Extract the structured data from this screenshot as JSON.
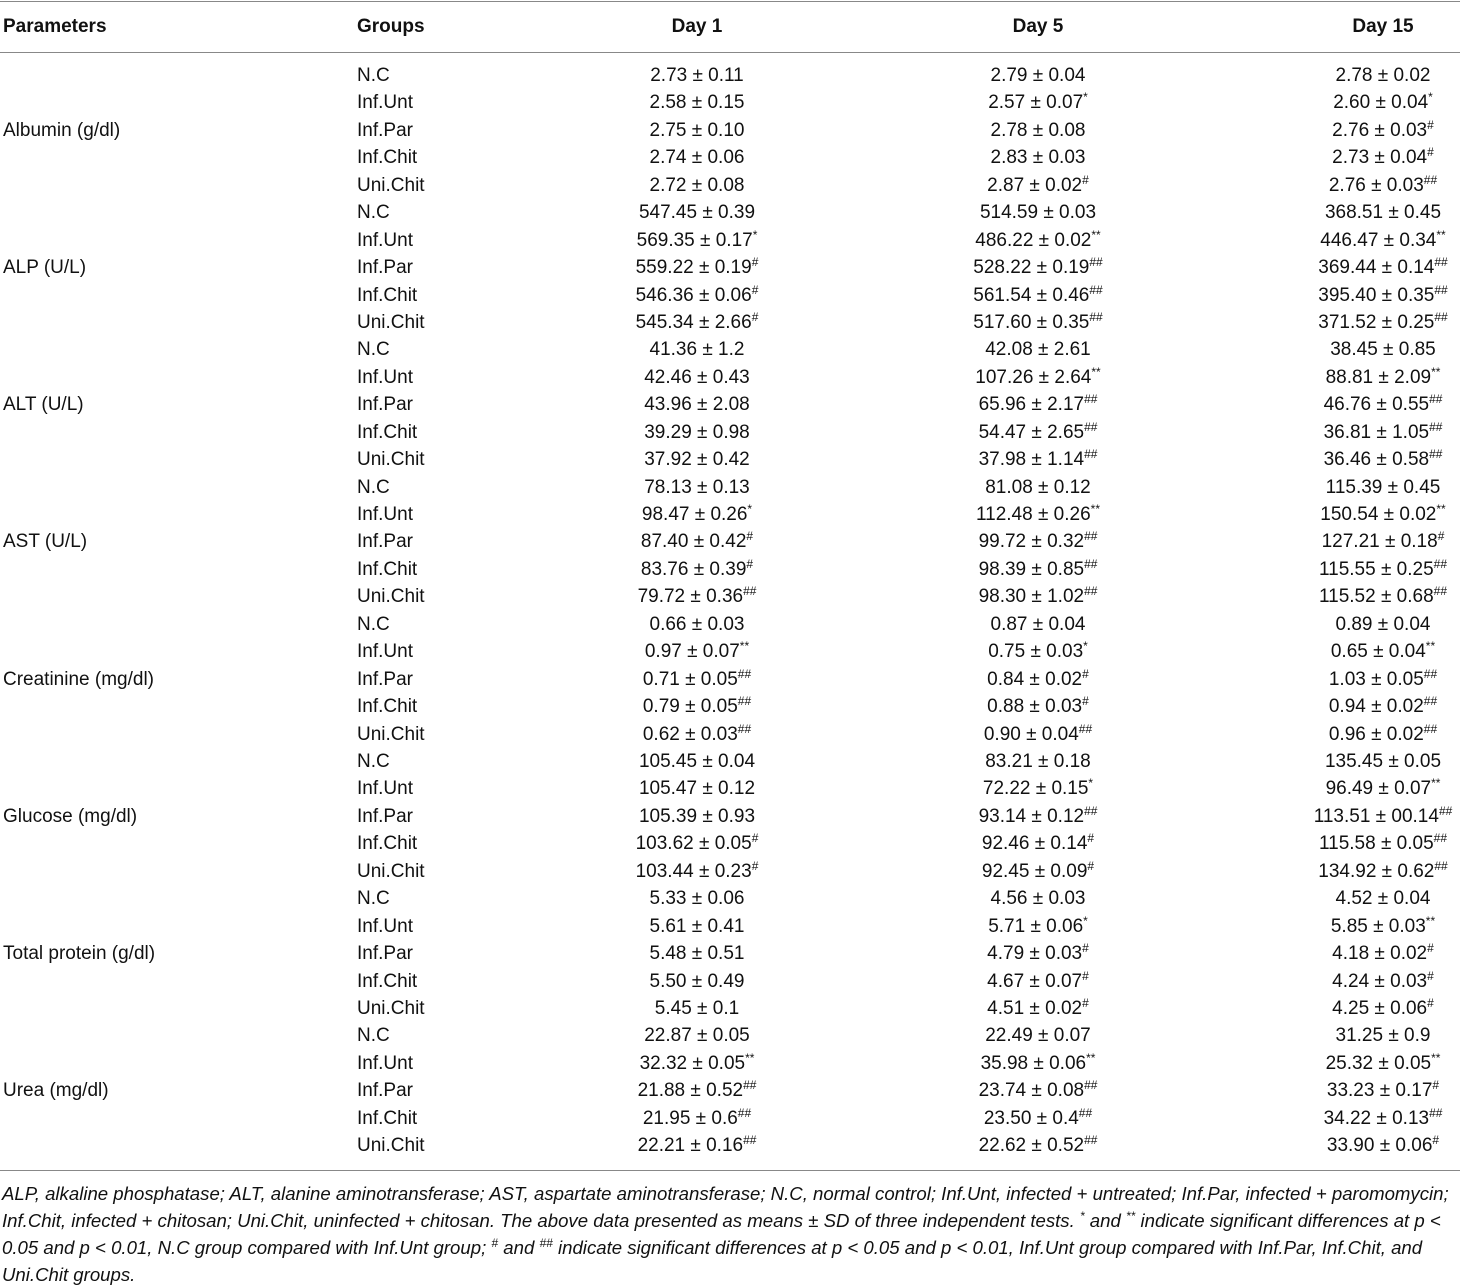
{
  "table": {
    "header": [
      "Parameters",
      "Groups",
      "Day 1",
      "Day 5",
      "Day 15"
    ],
    "sections": [
      {
        "parameter": "Albumin (g/dl)",
        "rows": [
          [
            "N.C",
            "2.73 ± 0.11",
            "2.79 ± 0.04",
            "2.78 ± 0.02"
          ],
          [
            "Inf.Unt",
            "2.58 ± 0.15",
            [
              "2.57 ± 0.07",
              "*"
            ],
            [
              "2.60 ± 0.04",
              "*"
            ]
          ],
          [
            "Inf.Par",
            "2.75 ± 0.10",
            "2.78 ± 0.08",
            [
              "2.76 ± 0.03",
              "#"
            ]
          ],
          [
            "Inf.Chit",
            "2.74 ± 0.06",
            "2.83 ± 0.03",
            [
              "2.73 ± 0.04",
              "#"
            ]
          ],
          [
            "Uni.Chit",
            "2.72 ± 0.08",
            [
              "2.87 ± 0.02",
              "#"
            ],
            [
              "2.76 ± 0.03",
              "##"
            ]
          ]
        ]
      },
      {
        "parameter": "ALP (U/L)",
        "rows": [
          [
            "N.C",
            "547.45 ± 0.39",
            "514.59 ± 0.03",
            "368.51 ± 0.45"
          ],
          [
            "Inf.Unt",
            [
              "569.35 ± 0.17",
              "*"
            ],
            [
              "486.22 ± 0.02",
              "**"
            ],
            [
              "446.47 ± 0.34",
              "**"
            ]
          ],
          [
            "Inf.Par",
            [
              "559.22 ± 0.19",
              "#"
            ],
            [
              "528.22 ± 0.19",
              "##"
            ],
            [
              "369.44 ± 0.14",
              "##"
            ]
          ],
          [
            "Inf.Chit",
            [
              "546.36 ± 0.06",
              "#"
            ],
            [
              "561.54 ± 0.46",
              "##"
            ],
            [
              "395.40 ± 0.35",
              "##"
            ]
          ],
          [
            "Uni.Chit",
            [
              "545.34 ± 2.66",
              "#"
            ],
            [
              "517.60 ± 0.35",
              "##"
            ],
            [
              "371.52 ± 0.25",
              "##"
            ]
          ]
        ]
      },
      {
        "parameter": "ALT (U/L)",
        "rows": [
          [
            "N.C",
            "41.36 ± 1.2",
            "42.08 ± 2.61",
            "38.45 ± 0.85"
          ],
          [
            "Inf.Unt",
            "42.46 ± 0.43",
            [
              "107.26 ± 2.64",
              "**"
            ],
            [
              "88.81 ± 2.09",
              "**"
            ]
          ],
          [
            "Inf.Par",
            "43.96 ± 2.08",
            [
              "65.96 ± 2.17",
              "##"
            ],
            [
              "46.76 ± 0.55",
              "##"
            ]
          ],
          [
            "Inf.Chit",
            "39.29 ± 0.98",
            [
              "54.47 ± 2.65",
              "##"
            ],
            [
              "36.81 ± 1.05",
              "##"
            ]
          ],
          [
            "Uni.Chit",
            "37.92 ± 0.42",
            [
              "37.98 ± 1.14",
              "##"
            ],
            [
              "36.46 ± 0.58",
              "##"
            ]
          ]
        ]
      },
      {
        "parameter": "AST (U/L)",
        "rows": [
          [
            "N.C",
            "78.13 ± 0.13",
            "81.08 ± 0.12",
            "115.39 ± 0.45"
          ],
          [
            "Inf.Unt",
            [
              "98.47 ± 0.26",
              "*"
            ],
            [
              "112.48 ± 0.26",
              "**"
            ],
            [
              "150.54 ± 0.02",
              "**"
            ]
          ],
          [
            "Inf.Par",
            [
              "87.40 ± 0.42",
              "#"
            ],
            [
              "99.72 ± 0.32",
              "##"
            ],
            [
              "127.21 ± 0.18",
              "#"
            ]
          ],
          [
            "Inf.Chit",
            [
              "83.76 ± 0.39",
              "#"
            ],
            [
              "98.39 ± 0.85",
              "##"
            ],
            [
              "115.55 ± 0.25",
              "##"
            ]
          ],
          [
            "Uni.Chit",
            [
              "79.72 ± 0.36",
              "##"
            ],
            [
              "98.30 ± 1.02",
              "##"
            ],
            [
              "115.52 ± 0.68",
              "##"
            ]
          ]
        ]
      },
      {
        "parameter": "Creatinine (mg/dl)",
        "rows": [
          [
            "N.C",
            "0.66 ± 0.03",
            "0.87 ± 0.04",
            "0.89 ± 0.04"
          ],
          [
            "Inf.Unt",
            [
              "0.97 ± 0.07",
              "**"
            ],
            [
              "0.75 ± 0.03",
              "*"
            ],
            [
              "0.65 ± 0.04",
              "**"
            ]
          ],
          [
            "Inf.Par",
            [
              "0.71 ± 0.05",
              "##"
            ],
            [
              "0.84 ± 0.02",
              "#"
            ],
            [
              "1.03 ± 0.05",
              "##"
            ]
          ],
          [
            "Inf.Chit",
            [
              "0.79 ± 0.05",
              "##"
            ],
            [
              "0.88 ± 0.03",
              "#"
            ],
            [
              "0.94 ± 0.02",
              "##"
            ]
          ],
          [
            "Uni.Chit",
            [
              "0.62 ± 0.03",
              "##"
            ],
            [
              "0.90 ± 0.04",
              "##"
            ],
            [
              "0.96 ± 0.02",
              "##"
            ]
          ]
        ]
      },
      {
        "parameter": "Glucose (mg/dl)",
        "rows": [
          [
            "N.C",
            "105.45 ± 0.04",
            "83.21 ± 0.18",
            "135.45 ± 0.05"
          ],
          [
            "Inf.Unt",
            "105.47 ± 0.12",
            [
              "72.22 ± 0.15",
              "*"
            ],
            [
              "96.49 ± 0.07",
              "**"
            ]
          ],
          [
            "Inf.Par",
            "105.39 ± 0.93",
            [
              "93.14 ± 0.12",
              "##"
            ],
            [
              "113.51 ± 00.14",
              "##"
            ]
          ],
          [
            "Inf.Chit",
            [
              "103.62 ± 0.05",
              "#"
            ],
            [
              "92.46 ± 0.14",
              "#"
            ],
            [
              "115.58 ± 0.05",
              "##"
            ]
          ],
          [
            "Uni.Chit",
            [
              "103.44 ± 0.23",
              "#"
            ],
            [
              "92.45 ± 0.09",
              "#"
            ],
            [
              "134.92 ± 0.62",
              "##"
            ]
          ]
        ]
      },
      {
        "parameter": "Total protein (g/dl)",
        "rows": [
          [
            "N.C",
            "5.33 ± 0.06",
            "4.56 ± 0.03",
            "4.52 ± 0.04"
          ],
          [
            "Inf.Unt",
            "5.61 ± 0.41",
            [
              "5.71 ± 0.06",
              "*"
            ],
            [
              "5.85 ± 0.03",
              "**"
            ]
          ],
          [
            "Inf.Par",
            "5.48 ± 0.51",
            [
              "4.79 ± 0.03",
              "#"
            ],
            [
              "4.18 ± 0.02",
              "#"
            ]
          ],
          [
            "Inf.Chit",
            "5.50 ± 0.49",
            [
              "4.67 ± 0.07",
              "#"
            ],
            [
              "4.24 ± 0.03",
              "#"
            ]
          ],
          [
            "Uni.Chit",
            "5.45 ± 0.1",
            [
              "4.51 ± 0.02",
              "#"
            ],
            [
              "4.25 ± 0.06",
              "#"
            ]
          ]
        ]
      },
      {
        "parameter": "Urea (mg/dl)",
        "rows": [
          [
            "N.C",
            "22.87 ± 0.05",
            "22.49 ± 0.07",
            "31.25 ± 0.9"
          ],
          [
            "Inf.Unt",
            [
              "32.32 ± 0.05",
              "**"
            ],
            [
              "35.98 ± 0.06",
              "**"
            ],
            [
              "25.32 ± 0.05",
              "**"
            ]
          ],
          [
            "Inf.Par",
            [
              "21.88 ± 0.52",
              "##"
            ],
            [
              "23.74 ± 0.08",
              "##"
            ],
            [
              "33.23 ± 0.17",
              "#"
            ]
          ],
          [
            "Inf.Chit",
            [
              "21.95 ± 0.6",
              "##"
            ],
            [
              "23.50 ± 0.4",
              "##"
            ],
            [
              "34.22 ± 0.13",
              "##"
            ]
          ],
          [
            "Uni.Chit",
            [
              "22.21 ± 0.16",
              "##"
            ],
            [
              "22.62 ± 0.52",
              "##"
            ],
            [
              "33.90 ± 0.06",
              "#"
            ]
          ]
        ]
      }
    ],
    "footnote": [
      "ALP, alkaline phosphatase; ALT, alanine aminotransferase; AST, aspartate aminotransferase; N.C, normal control; Inf.Unt, infected + untreated; Inf.Par, infected + paromomycin; Inf.Chit, infected + chitosan; Uni.Chit, uninfected + chitosan. The above data presented as means ± SD of three independent tests. ",
      [
        "*"
      ],
      " and ",
      [
        "**"
      ],
      " indicate significant differences at p < 0.05 and p < 0.01, N.C group compared with Inf.Unt group; ",
      [
        "#"
      ],
      " and ",
      [
        "##"
      ],
      " indicate significant differences at p < 0.05 and p < 0.01, Inf.Unt group compared with Inf.Par, Inf.Chit, and Uni.Chit groups."
    ]
  }
}
